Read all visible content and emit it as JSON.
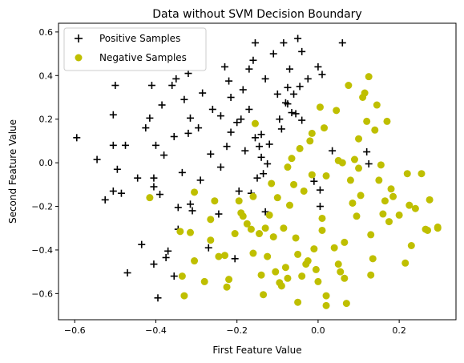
{
  "chart_data": {
    "type": "scatter",
    "title": "Data without SVM Decision Boundary",
    "xlabel": "First Feature Value",
    "ylabel": "Second Feature Value",
    "xlim": [
      -0.64,
      0.34
    ],
    "ylim": [
      -0.72,
      0.64
    ],
    "xticks": [
      -0.6,
      -0.4,
      -0.2,
      0.0,
      0.2
    ],
    "xtick_labels": [
      "−0.6",
      "−0.4",
      "−0.2",
      "0.0",
      "0.2"
    ],
    "yticks": [
      -0.6,
      -0.4,
      -0.2,
      0.0,
      0.2,
      0.4,
      0.6
    ],
    "ytick_labels": [
      "−0.6",
      "−0.4",
      "−0.2",
      "0.0",
      "0.2",
      "0.4",
      "0.6"
    ],
    "grid": false,
    "legend_position": "top-left",
    "series": [
      {
        "name": "Positive Samples",
        "marker": "plus",
        "color": "#000000",
        "points": [
          [
            -0.595,
            0.115
          ],
          [
            -0.545,
            0.015
          ],
          [
            -0.525,
            -0.17
          ],
          [
            -0.5,
            0.355
          ],
          [
            -0.505,
            0.22
          ],
          [
            -0.505,
            0.08
          ],
          [
            -0.495,
            -0.03
          ],
          [
            -0.505,
            -0.13
          ],
          [
            -0.485,
            -0.14
          ],
          [
            -0.475,
            0.08
          ],
          [
            -0.47,
            -0.505
          ],
          [
            -0.445,
            -0.07
          ],
          [
            -0.435,
            -0.375
          ],
          [
            -0.425,
            0.16
          ],
          [
            -0.415,
            0.205
          ],
          [
            -0.41,
            0.355
          ],
          [
            -0.405,
            -0.07
          ],
          [
            -0.405,
            -0.11
          ],
          [
            -0.405,
            -0.465
          ],
          [
            -0.4,
            0.08
          ],
          [
            -0.395,
            -0.62
          ],
          [
            -0.39,
            -0.145
          ],
          [
            -0.385,
            0.265
          ],
          [
            -0.375,
            -0.435
          ],
          [
            -0.38,
            0.035
          ],
          [
            -0.37,
            -0.405
          ],
          [
            -0.36,
            0.355
          ],
          [
            -0.355,
            0.12
          ],
          [
            -0.345,
            -0.305
          ],
          [
            -0.345,
            -0.205
          ],
          [
            -0.355,
            -0.52
          ],
          [
            -0.35,
            0.385
          ],
          [
            -0.335,
            -0.045
          ],
          [
            -0.33,
            0.29
          ],
          [
            -0.32,
            0.135
          ],
          [
            -0.315,
            0.205
          ],
          [
            -0.32,
            0.41
          ],
          [
            -0.315,
            -0.19
          ],
          [
            -0.31,
            -0.22
          ],
          [
            -0.295,
            0.16
          ],
          [
            -0.29,
            -0.08
          ],
          [
            -0.285,
            0.32
          ],
          [
            -0.27,
            -0.39
          ],
          [
            -0.265,
            0.04
          ],
          [
            -0.26,
            0.245
          ],
          [
            -0.245,
            -0.235
          ],
          [
            -0.24,
            0.215
          ],
          [
            -0.24,
            -0.02
          ],
          [
            -0.23,
            0.44
          ],
          [
            -0.22,
            0.375
          ],
          [
            -0.225,
            0.075
          ],
          [
            -0.215,
            0.14
          ],
          [
            -0.215,
            0.3
          ],
          [
            -0.205,
            -0.44
          ],
          [
            -0.2,
            0.185
          ],
          [
            -0.195,
            -0.13
          ],
          [
            -0.19,
            0.2
          ],
          [
            -0.185,
            0.335
          ],
          [
            -0.18,
            0.055
          ],
          [
            -0.17,
            0.43
          ],
          [
            -0.17,
            0.245
          ],
          [
            -0.165,
            -0.14
          ],
          [
            -0.16,
            0.47
          ],
          [
            -0.155,
            0.55
          ],
          [
            -0.155,
            0.115
          ],
          [
            -0.15,
            -0.07
          ],
          [
            -0.145,
            0.075
          ],
          [
            -0.14,
            0.13
          ],
          [
            -0.14,
            0.025
          ],
          [
            -0.135,
            -0.05
          ],
          [
            -0.13,
            0.385
          ],
          [
            -0.13,
            -0.225
          ],
          [
            -0.125,
            -0.005
          ],
          [
            -0.12,
            0.085
          ],
          [
            -0.11,
            0.5
          ],
          [
            -0.1,
            0.315
          ],
          [
            -0.095,
            0.2
          ],
          [
            -0.09,
            0.155
          ],
          [
            -0.085,
            0.55
          ],
          [
            -0.08,
            0.275
          ],
          [
            -0.075,
            0.27
          ],
          [
            -0.075,
            0.345
          ],
          [
            -0.07,
            0.43
          ],
          [
            -0.065,
            0.23
          ],
          [
            -0.06,
            0.315
          ],
          [
            -0.055,
            0.225
          ],
          [
            -0.05,
            0.57
          ],
          [
            -0.045,
            0.35
          ],
          [
            -0.04,
            0.51
          ],
          [
            -0.04,
            0.195
          ],
          [
            -0.025,
            0.385
          ],
          [
            -0.01,
            -0.085
          ],
          [
            0.0,
            0.44
          ],
          [
            0.005,
            -0.125
          ],
          [
            0.005,
            -0.2
          ],
          [
            0.01,
            0.405
          ],
          [
            0.035,
            0.055
          ],
          [
            0.06,
            0.55
          ],
          [
            0.12,
            0.05
          ],
          [
            0.125,
            -0.005
          ]
        ]
      },
      {
        "name": "Negative Samples",
        "marker": "circle",
        "color": "#bfbf00",
        "points": [
          [
            -0.415,
            -0.16
          ],
          [
            -0.34,
            -0.315
          ],
          [
            -0.335,
            -0.52
          ],
          [
            -0.33,
            -0.61
          ],
          [
            -0.315,
            -0.32
          ],
          [
            -0.305,
            -0.135
          ],
          [
            -0.305,
            -0.45
          ],
          [
            -0.28,
            -0.545
          ],
          [
            -0.265,
            -0.26
          ],
          [
            -0.265,
            -0.355
          ],
          [
            -0.255,
            -0.175
          ],
          [
            -0.245,
            -0.43
          ],
          [
            -0.23,
            -0.425
          ],
          [
            -0.225,
            -0.57
          ],
          [
            -0.22,
            -0.535
          ],
          [
            -0.205,
            -0.325
          ],
          [
            -0.195,
            -0.175
          ],
          [
            -0.19,
            -0.23
          ],
          [
            -0.185,
            -0.245
          ],
          [
            -0.175,
            -0.28
          ],
          [
            -0.165,
            -0.305
          ],
          [
            -0.16,
            -0.415
          ],
          [
            -0.16,
            -0.155
          ],
          [
            -0.155,
            0.18
          ],
          [
            -0.145,
            -0.325
          ],
          [
            -0.14,
            -0.515
          ],
          [
            -0.135,
            -0.605
          ],
          [
            -0.13,
            -0.3
          ],
          [
            -0.125,
            -0.43
          ],
          [
            -0.12,
            -0.24
          ],
          [
            -0.115,
            -0.095
          ],
          [
            -0.11,
            -0.34
          ],
          [
            -0.105,
            -0.5
          ],
          [
            -0.1,
            -0.16
          ],
          [
            -0.095,
            -0.55
          ],
          [
            -0.09,
            -0.565
          ],
          [
            -0.085,
            -0.3
          ],
          [
            -0.08,
            -0.48
          ],
          [
            -0.075,
            -0.53
          ],
          [
            -0.075,
            -0.02
          ],
          [
            -0.07,
            -0.195
          ],
          [
            -0.065,
            0.02
          ],
          [
            -0.06,
            -0.1
          ],
          [
            -0.055,
            -0.345
          ],
          [
            -0.05,
            -0.64
          ],
          [
            -0.05,
            -0.42
          ],
          [
            -0.045,
            0.065
          ],
          [
            -0.04,
            -0.52
          ],
          [
            -0.035,
            -0.13
          ],
          [
            -0.03,
            -0.465
          ],
          [
            -0.025,
            -0.45
          ],
          [
            -0.02,
            0.1
          ],
          [
            -0.015,
            0.135
          ],
          [
            -0.015,
            -0.055
          ],
          [
            -0.01,
            -0.395
          ],
          [
            -0.005,
            -0.49
          ],
          [
            0.0,
            -0.545
          ],
          [
            0.005,
            0.255
          ],
          [
            0.01,
            -0.255
          ],
          [
            0.01,
            -0.31
          ],
          [
            0.015,
            0.16
          ],
          [
            0.02,
            -0.61
          ],
          [
            0.02,
            -0.06
          ],
          [
            0.04,
            -0.39
          ],
          [
            0.045,
            0.24
          ],
          [
            0.05,
            -0.465
          ],
          [
            0.055,
            -0.5
          ],
          [
            0.06,
            0.0
          ],
          [
            0.065,
            -0.365
          ],
          [
            0.065,
            -0.53
          ],
          [
            0.07,
            -0.645
          ],
          [
            0.075,
            0.355
          ],
          [
            0.08,
            -0.08
          ],
          [
            0.085,
            -0.185
          ],
          [
            0.09,
            0.015
          ],
          [
            0.095,
            -0.245
          ],
          [
            0.1,
            0.11
          ],
          [
            0.105,
            -0.15
          ],
          [
            0.11,
            0.3
          ],
          [
            0.115,
            0.32
          ],
          [
            0.12,
            0.19
          ],
          [
            0.125,
            0.395
          ],
          [
            0.13,
            -0.33
          ],
          [
            0.13,
            -0.515
          ],
          [
            0.135,
            -0.44
          ],
          [
            0.14,
            0.15
          ],
          [
            0.145,
            0.265
          ],
          [
            0.15,
            -0.08
          ],
          [
            0.155,
            -0.01
          ],
          [
            0.16,
            -0.235
          ],
          [
            0.165,
            -0.175
          ],
          [
            0.17,
            0.19
          ],
          [
            0.175,
            -0.27
          ],
          [
            0.18,
            -0.12
          ],
          [
            0.185,
            -0.155
          ],
          [
            0.2,
            -0.24
          ],
          [
            0.215,
            -0.46
          ],
          [
            0.22,
            -0.05
          ],
          [
            0.225,
            -0.195
          ],
          [
            0.23,
            -0.38
          ],
          [
            0.24,
            -0.21
          ],
          [
            0.255,
            -0.05
          ],
          [
            0.265,
            -0.305
          ],
          [
            0.27,
            -0.31
          ],
          [
            0.275,
            -0.17
          ],
          [
            0.295,
            -0.3
          ],
          [
            0.295,
            -0.295
          ],
          [
            0.02,
            -0.655
          ],
          [
            0.05,
            0.01
          ],
          [
            0.1,
            -0.025
          ]
        ]
      }
    ]
  }
}
